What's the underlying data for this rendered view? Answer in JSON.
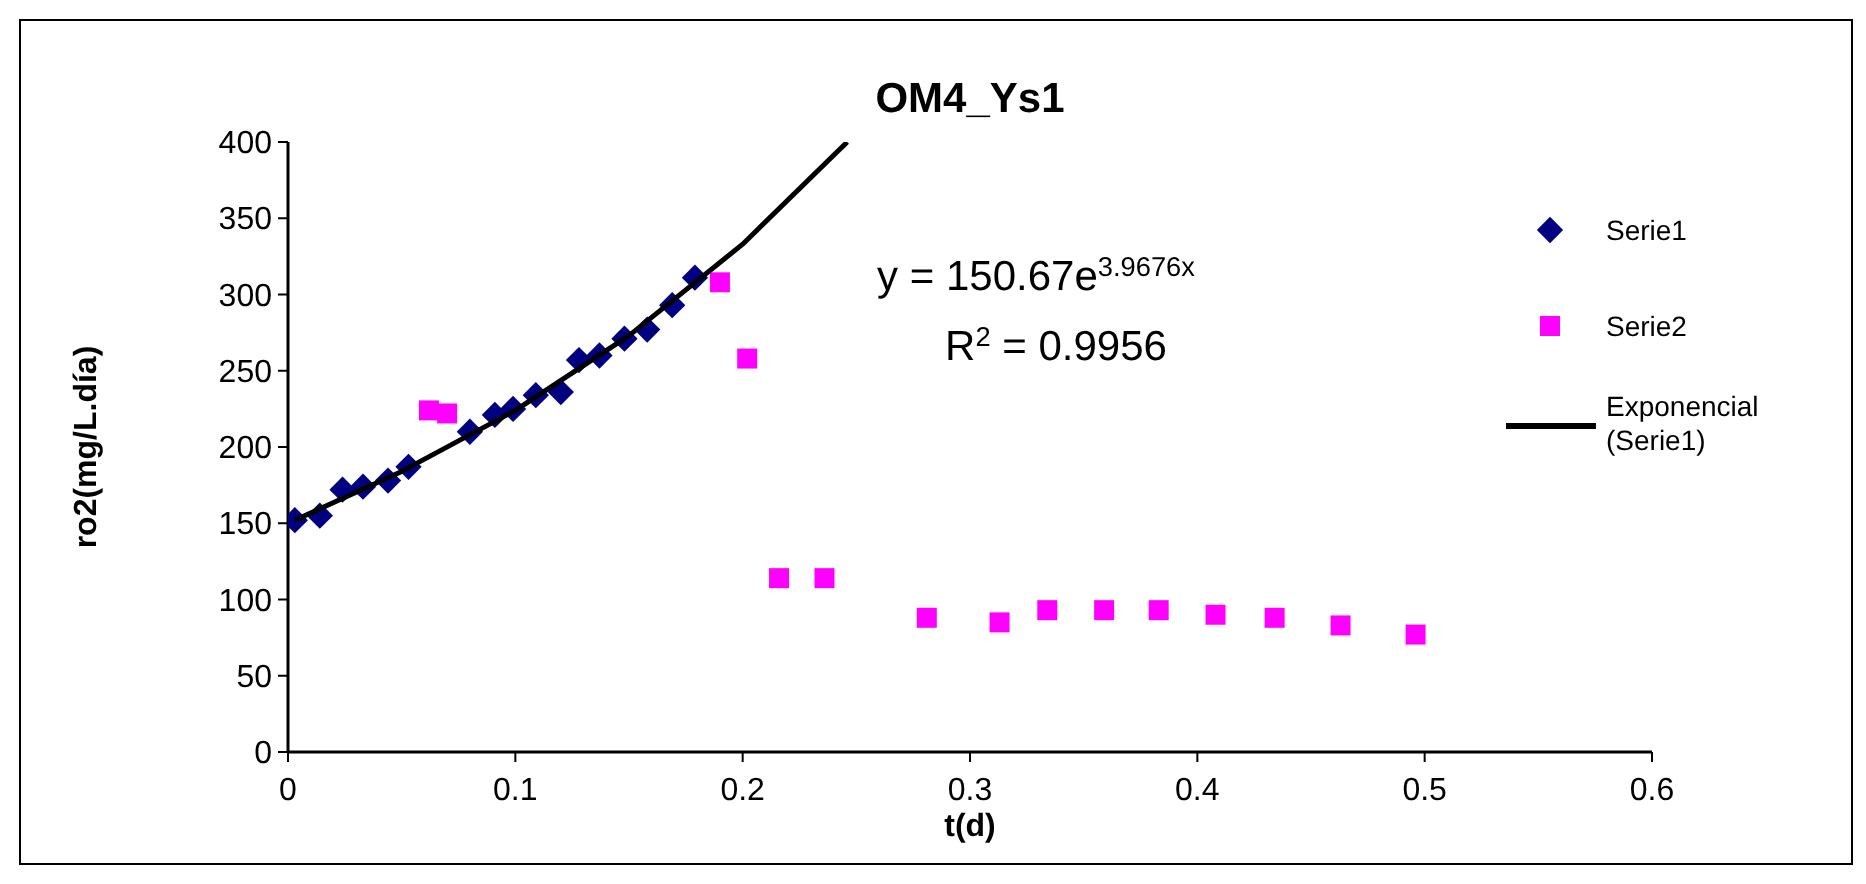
{
  "chart_data": {
    "type": "scatter",
    "title": "OM4_Ys1",
    "xlabel": "t(d)",
    "ylabel": "ro2(mg/L.día)",
    "xlim": [
      0,
      0.6
    ],
    "xticks": [
      0,
      0.1,
      0.2,
      0.3,
      0.4,
      0.5,
      0.6
    ],
    "ylim": [
      0,
      400
    ],
    "yticks": [
      0,
      50,
      100,
      150,
      200,
      250,
      300,
      350,
      400
    ],
    "grid": false,
    "legend": "right",
    "annotations": [
      "y = 150.67e$^{3.9676x}$",
      "R$^{2}$ = 0.9956"
    ],
    "series": [
      {
        "name": "Serie1",
        "color": "#000080",
        "marker": "diamond",
        "x": [
          0.003,
          0.014,
          0.024,
          0.033,
          0.044,
          0.053,
          0.08,
          0.091,
          0.099,
          0.109,
          0.12,
          0.128,
          0.137,
          0.148,
          0.158,
          0.169,
          0.179
        ],
        "values": [
          152,
          155,
          172,
          174,
          178,
          187,
          210,
          221,
          225,
          234,
          236,
          257,
          260,
          271,
          277,
          293,
          311
        ]
      },
      {
        "name": "Serie2",
        "color": "#ff00ff",
        "marker": "square",
        "x": [
          0.062,
          0.07,
          0.19,
          0.202,
          0.216,
          0.236,
          0.281,
          0.313,
          0.334,
          0.359,
          0.383,
          0.408,
          0.434,
          0.463,
          0.496
        ],
        "values": [
          224,
          222,
          308,
          258,
          114,
          114,
          88,
          85,
          93,
          93,
          93,
          90,
          88,
          83,
          77
        ]
      },
      {
        "name": "Exponencial (Serie1)",
        "type": "line",
        "color": "#000000",
        "marker": "none",
        "x": [
          0.003,
          0.05,
          0.1,
          0.15,
          0.2,
          0.246
        ],
        "values": [
          152,
          184,
          224,
          273,
          333,
          400
        ]
      }
    ]
  }
}
